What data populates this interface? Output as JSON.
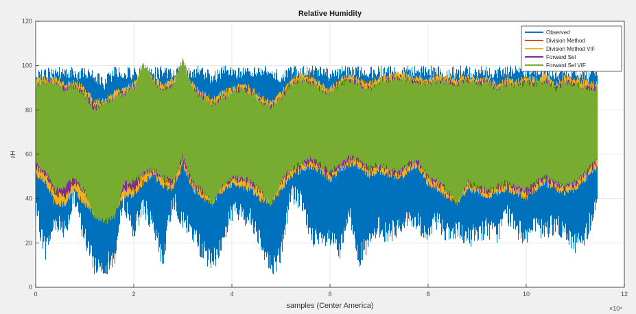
{
  "chart_data": {
    "type": "line",
    "title": "Relative Humidity",
    "xlabel": "samples (Center America)",
    "ylabel": "rH",
    "x_exponent_label": "×10⁴",
    "xlim": [
      0,
      12
    ],
    "ylim": [
      0,
      120
    ],
    "x_ticks": [
      0,
      2,
      4,
      6,
      8,
      10,
      12
    ],
    "y_ticks": [
      0,
      20,
      40,
      60,
      80,
      100,
      120
    ],
    "x_tick_labels": [
      "0",
      "2",
      "4",
      "6",
      "8",
      "10",
      "12"
    ],
    "y_tick_labels": [
      "0",
      "20",
      "40",
      "60",
      "80",
      "100",
      "120"
    ],
    "grid": true,
    "legend_position": "top-right",
    "x_data_max": 11.45,
    "series": [
      {
        "name": "Observed",
        "color": "#0072bd",
        "envelope": {
          "x": [
            0,
            0.2,
            0.4,
            0.6,
            0.8,
            1.0,
            1.2,
            1.4,
            1.6,
            1.8,
            2.0,
            2.2,
            2.4,
            2.6,
            2.8,
            3.0,
            3.2,
            3.4,
            3.6,
            3.8,
            4.0,
            4.2,
            4.4,
            4.6,
            4.8,
            5.0,
            5.2,
            5.4,
            5.6,
            5.8,
            6.0,
            6.2,
            6.4,
            6.6,
            6.8,
            7.0,
            7.2,
            7.4,
            7.6,
            7.8,
            8.0,
            8.2,
            8.4,
            8.6,
            8.8,
            9.0,
            9.2,
            9.4,
            9.6,
            9.8,
            10.0,
            10.2,
            10.4,
            10.6,
            10.8,
            11.0,
            11.2,
            11.45
          ],
          "max": [
            98,
            99,
            100,
            100,
            99,
            100,
            98,
            95,
            100,
            100,
            99,
            100,
            100,
            100,
            99,
            100,
            100,
            100,
            97,
            100,
            100,
            99,
            100,
            100,
            100,
            98,
            100,
            100,
            100,
            100,
            99,
            100,
            100,
            100,
            100,
            100,
            100,
            99,
            100,
            100,
            100,
            100,
            99,
            100,
            100,
            100,
            100,
            100,
            100,
            100,
            100,
            100,
            100,
            99,
            100,
            100,
            98,
            100
          ],
          "min": [
            30,
            12,
            25,
            22,
            34,
            18,
            5,
            5,
            8,
            35,
            20,
            33,
            21,
            8,
            36,
            25,
            20,
            12,
            6,
            15,
            30,
            28,
            26,
            16,
            4,
            10,
            38,
            34,
            20,
            15,
            17,
            11,
            28,
            9,
            15,
            22,
            19,
            23,
            26,
            24,
            18,
            26,
            19,
            20,
            17,
            20,
            22,
            19,
            29,
            21,
            19,
            22,
            21,
            24,
            19,
            15,
            18,
            35
          ]
        }
      },
      {
        "name": "Division Method",
        "color": "#d95319",
        "envelope": {
          "x": [
            0,
            0.2,
            0.4,
            0.6,
            0.8,
            1.0,
            1.2,
            1.4,
            1.6,
            1.8,
            2.0,
            2.2,
            2.4,
            2.6,
            2.8,
            3.0,
            3.2,
            3.4,
            3.6,
            3.8,
            4.0,
            4.2,
            4.4,
            4.6,
            4.8,
            5.0,
            5.2,
            5.4,
            5.6,
            5.8,
            6.0,
            6.2,
            6.4,
            6.6,
            6.8,
            7.0,
            7.2,
            7.4,
            7.6,
            7.8,
            8.0,
            8.2,
            8.4,
            8.6,
            8.8,
            9.0,
            9.2,
            9.4,
            9.6,
            9.8,
            10.0,
            10.2,
            10.4,
            10.6,
            10.8,
            11.0,
            11.2,
            11.45
          ],
          "max": [
            94,
            95,
            95,
            92,
            93,
            90,
            84,
            85,
            88,
            90,
            92,
            98,
            95,
            92,
            94,
            97,
            92,
            88,
            85,
            88,
            90,
            92,
            90,
            86,
            84,
            88,
            94,
            96,
            95,
            92,
            90,
            94,
            96,
            94,
            92,
            95,
            96,
            97,
            96,
            95,
            94,
            96,
            95,
            94,
            96,
            94,
            95,
            92,
            94,
            93,
            95,
            94,
            96,
            92,
            95,
            94,
            93,
            92
          ],
          "min": [
            52,
            48,
            40,
            38,
            45,
            40,
            34,
            32,
            35,
            42,
            42,
            48,
            50,
            46,
            44,
            55,
            44,
            40,
            38,
            42,
            46,
            46,
            44,
            40,
            38,
            44,
            50,
            52,
            54,
            52,
            48,
            52,
            55,
            54,
            50,
            52,
            50,
            48,
            52,
            54,
            46,
            44,
            40,
            38,
            44,
            42,
            40,
            42,
            44,
            42,
            40,
            44,
            46,
            44,
            42,
            44,
            48,
            54
          ]
        }
      },
      {
        "name": "Division Method VIF",
        "color": "#edb120",
        "envelope": {
          "x": [
            0,
            0.2,
            0.4,
            0.6,
            0.8,
            1.0,
            1.2,
            1.4,
            1.6,
            1.8,
            2.0,
            2.2,
            2.4,
            2.6,
            2.8,
            3.0,
            3.2,
            3.4,
            3.6,
            3.8,
            4.0,
            4.2,
            4.4,
            4.6,
            4.8,
            5.0,
            5.2,
            5.4,
            5.6,
            5.8,
            6.0,
            6.2,
            6.4,
            6.6,
            6.8,
            7.0,
            7.2,
            7.4,
            7.6,
            7.8,
            8.0,
            8.2,
            8.4,
            8.6,
            8.8,
            9.0,
            9.2,
            9.4,
            9.6,
            9.8,
            10.0,
            10.2,
            10.4,
            10.6,
            10.8,
            11.0,
            11.2,
            11.45
          ],
          "max": [
            95,
            96,
            96,
            93,
            94,
            91,
            85,
            86,
            89,
            91,
            93,
            99,
            96,
            93,
            95,
            98,
            93,
            89,
            86,
            89,
            91,
            93,
            91,
            87,
            85,
            89,
            95,
            97,
            96,
            93,
            91,
            95,
            97,
            95,
            93,
            96,
            97,
            98,
            97,
            96,
            95,
            97,
            96,
            95,
            97,
            95,
            96,
            93,
            95,
            94,
            96,
            95,
            97,
            93,
            96,
            95,
            94,
            93
          ],
          "min": [
            50,
            46,
            36,
            36,
            42,
            36,
            32,
            30,
            33,
            40,
            40,
            46,
            49,
            44,
            43,
            54,
            43,
            39,
            37,
            41,
            45,
            44,
            42,
            38,
            37,
            42,
            49,
            51,
            53,
            51,
            47,
            51,
            54,
            53,
            49,
            51,
            49,
            47,
            51,
            53,
            45,
            43,
            39,
            37,
            43,
            41,
            39,
            41,
            43,
            41,
            39,
            43,
            45,
            43,
            41,
            43,
            47,
            53
          ]
        }
      },
      {
        "name": "Forward Sel",
        "color": "#7e2f8e",
        "envelope": {
          "x": [
            0,
            0.2,
            0.4,
            0.6,
            0.8,
            1.0,
            1.2,
            1.4,
            1.6,
            1.8,
            2.0,
            2.2,
            2.4,
            2.6,
            2.8,
            3.0,
            3.2,
            3.4,
            3.6,
            3.8,
            4.0,
            4.2,
            4.4,
            4.6,
            4.8,
            5.0,
            5.2,
            5.4,
            5.6,
            5.8,
            6.0,
            6.2,
            6.4,
            6.6,
            6.8,
            7.0,
            7.2,
            7.4,
            7.6,
            7.8,
            8.0,
            8.2,
            8.4,
            8.6,
            8.8,
            9.0,
            9.2,
            9.4,
            9.6,
            9.8,
            10.0,
            10.2,
            10.4,
            10.6,
            10.8,
            11.0,
            11.2,
            11.45
          ],
          "max": [
            93,
            94,
            94,
            91,
            92,
            89,
            83,
            84,
            87,
            89,
            91,
            97,
            94,
            91,
            93,
            96,
            91,
            87,
            84,
            87,
            89,
            91,
            89,
            85,
            83,
            87,
            93,
            95,
            94,
            91,
            89,
            93,
            95,
            93,
            91,
            94,
            95,
            96,
            95,
            94,
            93,
            95,
            94,
            93,
            95,
            93,
            94,
            91,
            93,
            92,
            94,
            93,
            95,
            91,
            94,
            93,
            92,
            91
          ],
          "min": [
            53,
            49,
            41,
            39,
            46,
            41,
            35,
            33,
            36,
            43,
            43,
            49,
            51,
            47,
            45,
            56,
            45,
            41,
            39,
            43,
            47,
            47,
            45,
            41,
            39,
            45,
            51,
            53,
            55,
            53,
            49,
            53,
            56,
            55,
            51,
            53,
            51,
            49,
            53,
            55,
            47,
            45,
            41,
            39,
            45,
            43,
            41,
            43,
            45,
            43,
            41,
            45,
            47,
            45,
            43,
            45,
            49,
            55
          ]
        }
      },
      {
        "name": "Forward Sel VIF",
        "color": "#77ac30",
        "envelope": {
          "x": [
            0,
            0.2,
            0.4,
            0.6,
            0.8,
            1.0,
            1.2,
            1.4,
            1.6,
            1.8,
            2.0,
            2.2,
            2.4,
            2.6,
            2.8,
            3.0,
            3.2,
            3.4,
            3.6,
            3.8,
            4.0,
            4.2,
            4.4,
            4.6,
            4.8,
            5.0,
            5.2,
            5.4,
            5.6,
            5.8,
            6.0,
            6.2,
            6.4,
            6.6,
            6.8,
            7.0,
            7.2,
            7.4,
            7.6,
            7.8,
            8.0,
            8.2,
            8.4,
            8.6,
            8.8,
            9.0,
            9.2,
            9.4,
            9.6,
            9.8,
            10.0,
            10.2,
            10.4,
            10.6,
            10.8,
            11.0,
            11.2,
            11.45
          ],
          "max": [
            93,
            94,
            94,
            91,
            92,
            88,
            82,
            84,
            87,
            89,
            91,
            102,
            94,
            91,
            93,
            104,
            91,
            87,
            84,
            87,
            89,
            91,
            89,
            85,
            83,
            87,
            93,
            95,
            94,
            91,
            89,
            93,
            95,
            93,
            91,
            94,
            95,
            96,
            95,
            94,
            93,
            95,
            94,
            93,
            95,
            93,
            94,
            91,
            93,
            92,
            94,
            93,
            95,
            91,
            94,
            93,
            92,
            91
          ],
          "min": [
            54,
            50,
            42,
            44,
            48,
            42,
            30,
            28,
            30,
            45,
            46,
            50,
            52,
            48,
            46,
            57,
            46,
            42,
            36,
            44,
            48,
            48,
            46,
            42,
            36,
            46,
            52,
            54,
            56,
            54,
            50,
            54,
            57,
            56,
            52,
            54,
            52,
            50,
            54,
            56,
            48,
            46,
            42,
            36,
            46,
            44,
            42,
            44,
            46,
            44,
            42,
            46,
            48,
            46,
            44,
            46,
            50,
            56
          ]
        }
      }
    ]
  }
}
